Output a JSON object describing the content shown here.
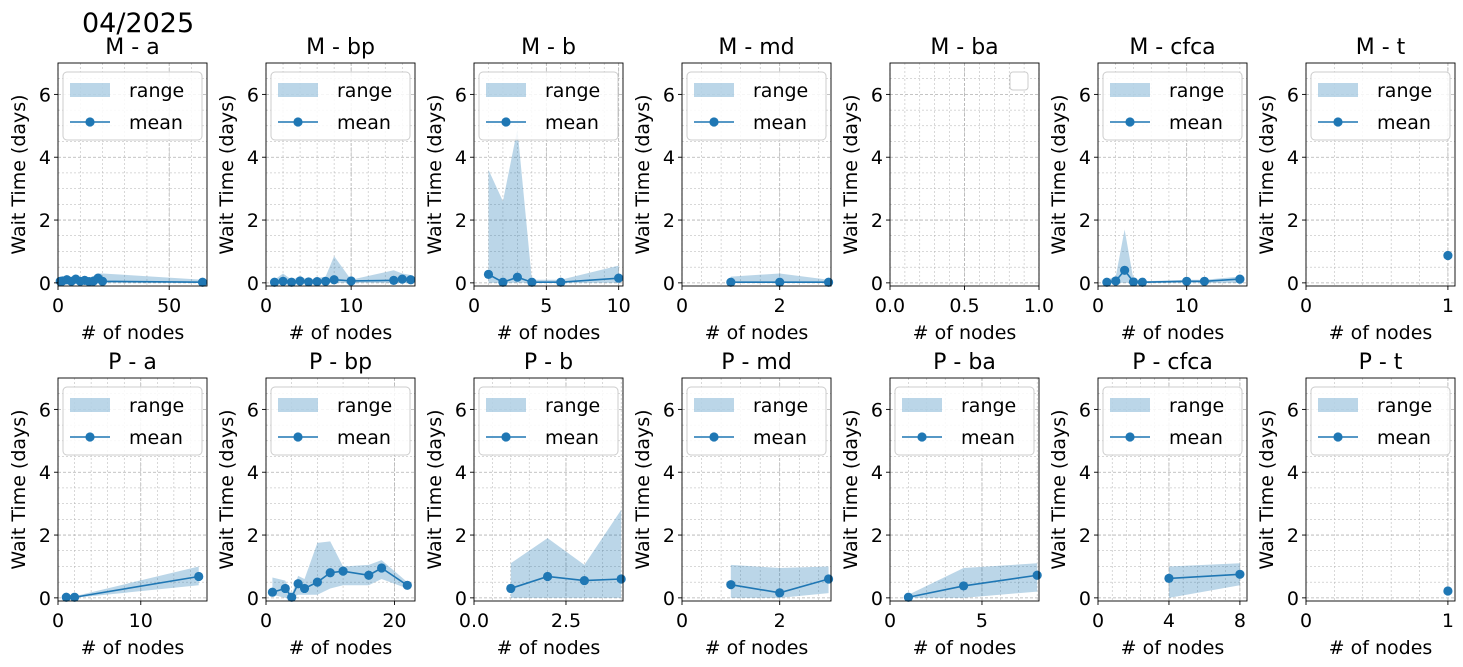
{
  "figure_title": "04/2025",
  "colors": {
    "mean": "#1f77b4",
    "range": "#1f77b4",
    "grid": "#b0b0b0"
  },
  "legend_labels": {
    "range": "range",
    "mean": "mean"
  },
  "chart_data": [
    {
      "type": "line",
      "title": "M -  a",
      "xlabel": "# of nodes",
      "ylabel": "Wait Time (days)",
      "xlim": [
        0,
        67
      ],
      "ylim": [
        -0.1,
        7
      ],
      "xticks": [
        0,
        50
      ],
      "xticklabels": [
        "0",
        "50"
      ],
      "yticks": [
        0,
        2,
        4,
        6
      ],
      "x": [
        1,
        2,
        4,
        6,
        8,
        10,
        12,
        14,
        16,
        18,
        20,
        65
      ],
      "mean": [
        0.05,
        0.06,
        0.1,
        0.05,
        0.12,
        0.05,
        0.08,
        0.04,
        0.06,
        0.15,
        0.05,
        0.02
      ],
      "lower": [
        0,
        0,
        0,
        0,
        0,
        0,
        0,
        0,
        0,
        0,
        0,
        0
      ],
      "upper": [
        0.15,
        0.2,
        0.25,
        0.15,
        0.22,
        0.15,
        0.2,
        0.1,
        0.15,
        0.3,
        0.3,
        0.1
      ],
      "legend": true
    },
    {
      "type": "line",
      "title": "M -  bp",
      "xlabel": "# of nodes",
      "ylabel": "Wait Time (days)",
      "xlim": [
        0,
        17.5
      ],
      "ylim": [
        -0.1,
        7
      ],
      "xticks": [
        0,
        10
      ],
      "xticklabels": [
        "0",
        "10"
      ],
      "yticks": [
        0,
        2,
        4,
        6
      ],
      "x": [
        1,
        2,
        3,
        4,
        5,
        6,
        7,
        8,
        10,
        15,
        16,
        17
      ],
      "mean": [
        0.02,
        0.05,
        0.02,
        0.06,
        0.03,
        0.04,
        0.05,
        0.1,
        0.06,
        0.08,
        0.12,
        0.1
      ],
      "lower": [
        0,
        0,
        0,
        0,
        0,
        0,
        0,
        0,
        0,
        0,
        0,
        0
      ],
      "upper": [
        0.1,
        0.3,
        0.1,
        0.2,
        0.1,
        0.15,
        0.2,
        0.85,
        0.1,
        0.4,
        0.3,
        0.25
      ],
      "legend": true
    },
    {
      "type": "line",
      "title": "M -  b",
      "xlabel": "# of nodes",
      "ylabel": "Wait Time (days)",
      "xlim": [
        0,
        10.3
      ],
      "ylim": [
        -0.1,
        7
      ],
      "xticks": [
        0,
        5,
        10
      ],
      "xticklabels": [
        "0",
        "5",
        "10"
      ],
      "yticks": [
        0,
        2,
        4,
        6
      ],
      "x": [
        1,
        2,
        3,
        4,
        6,
        10
      ],
      "mean": [
        0.27,
        0.02,
        0.18,
        0.02,
        0.02,
        0.15
      ],
      "lower": [
        0,
        0,
        0,
        0,
        0,
        0
      ],
      "upper": [
        3.6,
        2.6,
        4.9,
        0.1,
        0.1,
        0.55
      ],
      "legend": true
    },
    {
      "type": "line",
      "title": "M -  md",
      "xlabel": "# of nodes",
      "ylabel": "Wait Time (days)",
      "xlim": [
        0,
        3.05
      ],
      "ylim": [
        -0.1,
        7
      ],
      "xticks": [
        0,
        2
      ],
      "xticklabels": [
        "0",
        "2"
      ],
      "yticks": [
        0,
        2,
        4,
        6
      ],
      "x": [
        1,
        2,
        3
      ],
      "mean": [
        0.02,
        0.02,
        0.02
      ],
      "lower": [
        0,
        0,
        0
      ],
      "upper": [
        0.2,
        0.3,
        0.1
      ],
      "legend": true
    },
    {
      "type": "line",
      "title": "M -  ba",
      "xlabel": "# of nodes",
      "ylabel": "Wait Time (days)",
      "xlim": [
        0,
        1
      ],
      "ylim": [
        -0.1,
        7
      ],
      "xticks": [
        0,
        0.5,
        1
      ],
      "xticklabels": [
        "0.0",
        "0.5",
        "1.0"
      ],
      "yticks": [
        0,
        2,
        4,
        6
      ],
      "x": [],
      "mean": [],
      "lower": [],
      "upper": [],
      "legend": "empty"
    },
    {
      "type": "line",
      "title": "M -  cfca",
      "xlabel": "# of nodes",
      "ylabel": "Wait Time (days)",
      "xlim": [
        0,
        16.8
      ],
      "ylim": [
        -0.1,
        7
      ],
      "xticks": [
        0,
        10
      ],
      "xticklabels": [
        "0",
        "10"
      ],
      "yticks": [
        0,
        2,
        4,
        6
      ],
      "x": [
        1,
        2,
        3,
        4,
        5,
        10,
        12,
        16
      ],
      "mean": [
        0.02,
        0.06,
        0.4,
        0.03,
        0.02,
        0.05,
        0.05,
        0.12
      ],
      "lower": [
        0,
        0,
        0,
        0,
        0,
        0,
        0,
        0
      ],
      "upper": [
        0.1,
        0.2,
        1.7,
        0.1,
        0.05,
        0.1,
        0.1,
        0.2
      ],
      "legend": true
    },
    {
      "type": "line",
      "title": "M -  t",
      "xlabel": "# of nodes",
      "ylabel": "Wait Time (days)",
      "xlim": [
        0,
        1.05
      ],
      "ylim": [
        -0.1,
        7
      ],
      "xticks": [
        0,
        1
      ],
      "xticklabels": [
        "0",
        "1"
      ],
      "yticks": [
        0,
        2,
        4,
        6
      ],
      "x": [
        1
      ],
      "mean": [
        0.87
      ],
      "lower": [
        0.87
      ],
      "upper": [
        0.87
      ],
      "legend": true
    },
    {
      "type": "line",
      "title": "P -  a",
      "xlabel": "# of nodes",
      "ylabel": "Wait Time (days)",
      "xlim": [
        0,
        18
      ],
      "ylim": [
        -0.1,
        7
      ],
      "xticks": [
        0,
        10
      ],
      "xticklabels": [
        "0",
        "10"
      ],
      "yticks": [
        0,
        2,
        4,
        6
      ],
      "x": [
        1,
        2,
        17
      ],
      "mean": [
        0.02,
        0.02,
        0.68
      ],
      "lower": [
        0,
        0,
        0.4
      ],
      "upper": [
        0.05,
        0.05,
        1.0
      ],
      "legend": true
    },
    {
      "type": "line",
      "title": "P -  bp",
      "xlabel": "# of nodes",
      "ylabel": "Wait Time (days)",
      "xlim": [
        0,
        23.2
      ],
      "ylim": [
        -0.1,
        7
      ],
      "xticks": [
        0,
        20
      ],
      "xticklabels": [
        "0",
        "20"
      ],
      "yticks": [
        0,
        2,
        4,
        6
      ],
      "x": [
        1,
        3,
        4,
        5,
        6,
        8,
        10,
        12,
        16,
        18,
        22
      ],
      "mean": [
        0.18,
        0.3,
        0.02,
        0.45,
        0.3,
        0.5,
        0.8,
        0.85,
        0.72,
        0.95,
        0.4
      ],
      "lower": [
        0.1,
        0,
        0,
        0.1,
        0.1,
        0.1,
        0.3,
        0.4,
        0.4,
        0.6,
        0.3
      ],
      "upper": [
        0.65,
        0.55,
        0.1,
        0.7,
        0.6,
        1.75,
        1.8,
        1.0,
        1.05,
        1.2,
        0.5
      ],
      "legend": true
    },
    {
      "type": "line",
      "title": "P -  b",
      "xlabel": "# of nodes",
      "ylabel": "Wait Time (days)",
      "xlim": [
        0,
        4.05
      ],
      "ylim": [
        -0.1,
        7
      ],
      "xticks": [
        0,
        2.5
      ],
      "xticklabels": [
        "0.0",
        "2.5"
      ],
      "yticks": [
        0,
        2,
        4,
        6
      ],
      "x": [
        1,
        2,
        3,
        4
      ],
      "mean": [
        0.3,
        0.68,
        0.55,
        0.6
      ],
      "lower": [
        0,
        0,
        0,
        0
      ],
      "upper": [
        1.1,
        1.9,
        1.05,
        2.8
      ],
      "legend": true
    },
    {
      "type": "line",
      "title": "P -  md",
      "xlabel": "# of nodes",
      "ylabel": "Wait Time (days)",
      "xlim": [
        0,
        3.05
      ],
      "ylim": [
        -0.1,
        7
      ],
      "xticks": [
        0,
        2
      ],
      "xticklabels": [
        "0",
        "2"
      ],
      "yticks": [
        0,
        2,
        4,
        6
      ],
      "x": [
        1,
        2,
        3
      ],
      "mean": [
        0.42,
        0.16,
        0.6
      ],
      "lower": [
        0,
        0,
        0.15
      ],
      "upper": [
        1.05,
        0.95,
        1.0
      ],
      "legend": true
    },
    {
      "type": "line",
      "title": "P -  ba",
      "xlabel": "# of nodes",
      "ylabel": "Wait Time (days)",
      "xlim": [
        0,
        8.1
      ],
      "ylim": [
        -0.1,
        7
      ],
      "xticks": [
        0,
        5
      ],
      "xticklabels": [
        "0",
        "5"
      ],
      "yticks": [
        0,
        2,
        4,
        6
      ],
      "x": [
        1,
        4,
        8
      ],
      "mean": [
        0.02,
        0.38,
        0.72
      ],
      "lower": [
        0,
        0,
        0.2
      ],
      "upper": [
        0.1,
        0.95,
        1.1
      ],
      "legend": true
    },
    {
      "type": "line",
      "title": "P -  cfca",
      "xlabel": "# of nodes",
      "ylabel": "Wait Time (days)",
      "xlim": [
        0,
        8.4
      ],
      "ylim": [
        -0.1,
        7
      ],
      "xticks": [
        0,
        4,
        8
      ],
      "xticklabels": [
        "0",
        "4",
        "8"
      ],
      "yticks": [
        0,
        2,
        4,
        6
      ],
      "x": [
        4,
        8
      ],
      "mean": [
        0.62,
        0.75
      ],
      "lower": [
        0,
        0.4
      ],
      "upper": [
        1.0,
        1.1
      ],
      "legend": true
    },
    {
      "type": "line",
      "title": "P -  t",
      "xlabel": "# of nodes",
      "ylabel": "Wait Time (days)",
      "xlim": [
        0,
        1.05
      ],
      "ylim": [
        -0.1,
        7
      ],
      "xticks": [
        0,
        1
      ],
      "xticklabels": [
        "0",
        "1"
      ],
      "yticks": [
        0,
        2,
        4,
        6
      ],
      "x": [
        1
      ],
      "mean": [
        0.22
      ],
      "lower": [
        0.22
      ],
      "upper": [
        0.22
      ],
      "legend": true
    }
  ]
}
